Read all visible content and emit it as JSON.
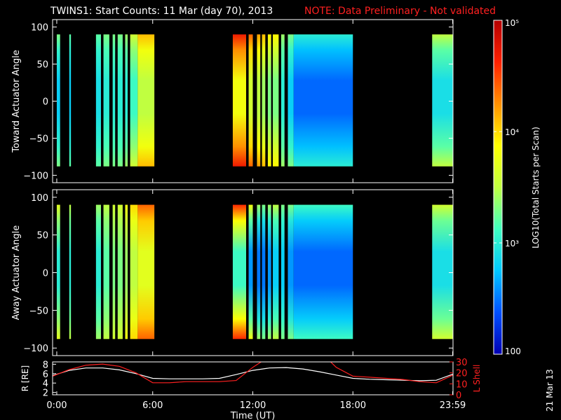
{
  "header": {
    "title": "TWINS1: Start Counts: 11 Mar (day  70), 2013",
    "note": "NOTE: Data Preliminary - Not validated"
  },
  "colorbar": {
    "label": "LOG10(Total Starts per Scan)",
    "ticks": [
      "100",
      "10³",
      "10⁴",
      "10⁵"
    ],
    "range": [
      100,
      100000
    ],
    "scale": "log",
    "colors": [
      "#0000b4",
      "#0050ff",
      "#00c8ff",
      "#40ffc0",
      "#c0ff40",
      "#ffff00",
      "#ff9000",
      "#ff2000",
      "#b40000"
    ]
  },
  "date_stamp": "21 Mar 13",
  "chart_data": [
    {
      "type": "heatmap",
      "name": "toward",
      "ylabel": "Toward Actuator Angle",
      "ylim": [
        -110,
        110
      ],
      "yticks": [
        "100",
        "50",
        "0",
        "−50",
        "−100"
      ],
      "xlim": [
        0,
        24
      ],
      "y_extent": [
        -88,
        90
      ],
      "background": "#000000",
      "blocks": [
        {
          "t0": 0.25,
          "t1": 0.45,
          "lo": 2.8,
          "hi": 3.3
        },
        {
          "t0": 1.0,
          "t1": 1.1,
          "lo": 2.8,
          "hi": 3.2
        },
        {
          "t0": 2.6,
          "t1": 2.9,
          "lo": 2.9,
          "hi": 3.2
        },
        {
          "t0": 3.05,
          "t1": 3.4,
          "lo": 3.0,
          "hi": 3.3
        },
        {
          "t0": 3.6,
          "t1": 3.75,
          "lo": 3.0,
          "hi": 3.3
        },
        {
          "t0": 3.9,
          "t1": 4.2,
          "lo": 3.0,
          "hi": 3.3
        },
        {
          "t0": 4.35,
          "t1": 4.5,
          "lo": 3.0,
          "hi": 3.4
        },
        {
          "t0": 4.65,
          "t1": 5.1,
          "lo": 3.1,
          "hi": 3.6
        },
        {
          "t0": 5.1,
          "t1": 6.1,
          "lo": 3.5,
          "hi": 4.1
        },
        {
          "t0": 10.8,
          "t1": 11.6,
          "lo": 3.8,
          "hi": 4.7
        },
        {
          "t0": 11.75,
          "t1": 12.0,
          "lo": 3.6,
          "hi": 4.4
        },
        {
          "t0": 12.25,
          "t1": 12.45,
          "lo": 3.5,
          "hi": 4.2
        },
        {
          "t0": 12.55,
          "t1": 12.75,
          "lo": 3.4,
          "hi": 4.1
        },
        {
          "t0": 12.9,
          "t1": 13.1,
          "lo": 3.3,
          "hi": 3.9
        },
        {
          "t0": 13.2,
          "t1": 13.55,
          "lo": 3.3,
          "hi": 3.9
        },
        {
          "t0": 13.7,
          "t1": 13.9,
          "lo": 3.0,
          "hi": 3.4
        },
        {
          "t0": 14.1,
          "t1": 14.45,
          "lo": 2.8,
          "hi": 3.3
        },
        {
          "t0": 14.45,
          "t1": 18.0,
          "lo": 2.45,
          "hi": 3.0
        },
        {
          "t0": 22.75,
          "t1": 23.98,
          "lo": 2.9,
          "hi": 3.5
        }
      ]
    },
    {
      "type": "heatmap",
      "name": "away",
      "ylabel": "Away Actuator Angle",
      "ylim": [
        -110,
        110
      ],
      "yticks": [
        "100",
        "50",
        "0",
        "−50",
        "−100"
      ],
      "xlim": [
        0,
        24
      ],
      "y_extent": [
        -88,
        90
      ],
      "background": "#000000",
      "blocks": [
        {
          "t0": 0.25,
          "t1": 0.45,
          "lo": 3.0,
          "hi": 3.7
        },
        {
          "t0": 1.0,
          "t1": 1.1,
          "lo": 3.0,
          "hi": 3.5
        },
        {
          "t0": 2.6,
          "t1": 2.9,
          "lo": 3.0,
          "hi": 3.4
        },
        {
          "t0": 3.05,
          "t1": 3.4,
          "lo": 3.2,
          "hi": 3.5
        },
        {
          "t0": 3.6,
          "t1": 3.75,
          "lo": 3.3,
          "hi": 3.6
        },
        {
          "t0": 3.9,
          "t1": 4.2,
          "lo": 3.3,
          "hi": 3.6
        },
        {
          "t0": 4.35,
          "t1": 4.5,
          "lo": 3.4,
          "hi": 3.8
        },
        {
          "t0": 4.65,
          "t1": 5.1,
          "lo": 3.5,
          "hi": 4.0
        },
        {
          "t0": 5.1,
          "t1": 6.1,
          "lo": 3.7,
          "hi": 4.4
        },
        {
          "t0": 10.8,
          "t1": 11.6,
          "lo": 3.1,
          "hi": 4.6
        },
        {
          "t0": 11.75,
          "t1": 12.0,
          "lo": 2.6,
          "hi": 3.8
        },
        {
          "t0": 12.25,
          "t1": 12.45,
          "lo": 2.5,
          "hi": 3.4
        },
        {
          "t0": 12.55,
          "t1": 12.75,
          "lo": 2.5,
          "hi": 3.3
        },
        {
          "t0": 12.9,
          "t1": 13.1,
          "lo": 2.6,
          "hi": 3.4
        },
        {
          "t0": 13.2,
          "t1": 13.55,
          "lo": 2.8,
          "hi": 3.5
        },
        {
          "t0": 13.7,
          "t1": 13.9,
          "lo": 2.8,
          "hi": 3.3
        },
        {
          "t0": 14.1,
          "t1": 14.45,
          "lo": 2.6,
          "hi": 3.3
        },
        {
          "t0": 14.45,
          "t1": 18.0,
          "lo": 2.45,
          "hi": 3.1
        },
        {
          "t0": 22.75,
          "t1": 23.98,
          "lo": 2.9,
          "hi": 3.6
        }
      ]
    },
    {
      "type": "line",
      "name": "orbit",
      "xlabel": "Time (UT)",
      "xlim": [
        0,
        24
      ],
      "xticks": [
        {
          "t": 0.25,
          "label": "0:00"
        },
        {
          "t": 6.0,
          "label": "6:00"
        },
        {
          "t": 12.0,
          "label": "12:00"
        },
        {
          "t": 18.0,
          "label": "18:00"
        },
        {
          "t": 23.98,
          "label": "23:59"
        }
      ],
      "ylabel_left": "R [RE]",
      "ylim_left": [
        1.5,
        8.5
      ],
      "yticks_left": [
        "2",
        "4",
        "6",
        "8"
      ],
      "ylabel_right": "L Shell",
      "ylim_right": [
        0,
        30
      ],
      "yticks_right": [
        "0",
        "10",
        "20",
        "30"
      ],
      "series": [
        {
          "axis": "left",
          "color": "#ffffff",
          "x": [
            0,
            1,
            2,
            3,
            4,
            5,
            6,
            7,
            8,
            9,
            10,
            11,
            12,
            13,
            14,
            15,
            16,
            17,
            18,
            19,
            20,
            21,
            22,
            23,
            24
          ],
          "y": [
            5.6,
            6.7,
            7.2,
            7.2,
            6.8,
            6.0,
            5.0,
            4.9,
            4.9,
            4.9,
            5.0,
            5.8,
            6.7,
            7.2,
            7.3,
            7.0,
            6.4,
            5.7,
            5.0,
            4.8,
            4.7,
            4.6,
            4.5,
            4.6,
            5.9
          ]
        },
        {
          "axis": "right",
          "color": "#ff2020",
          "x": [
            0,
            1,
            2,
            3,
            4,
            5,
            6,
            7,
            8,
            9,
            10,
            11,
            12,
            12.6,
            16.6,
            17,
            18,
            19,
            20,
            21,
            22,
            23,
            24
          ],
          "y": [
            17,
            23,
            27,
            28,
            26,
            20,
            11,
            11,
            12,
            12,
            12,
            13,
            25,
            31,
            31,
            25,
            17,
            16,
            15,
            14,
            12,
            11,
            18
          ]
        }
      ]
    }
  ]
}
